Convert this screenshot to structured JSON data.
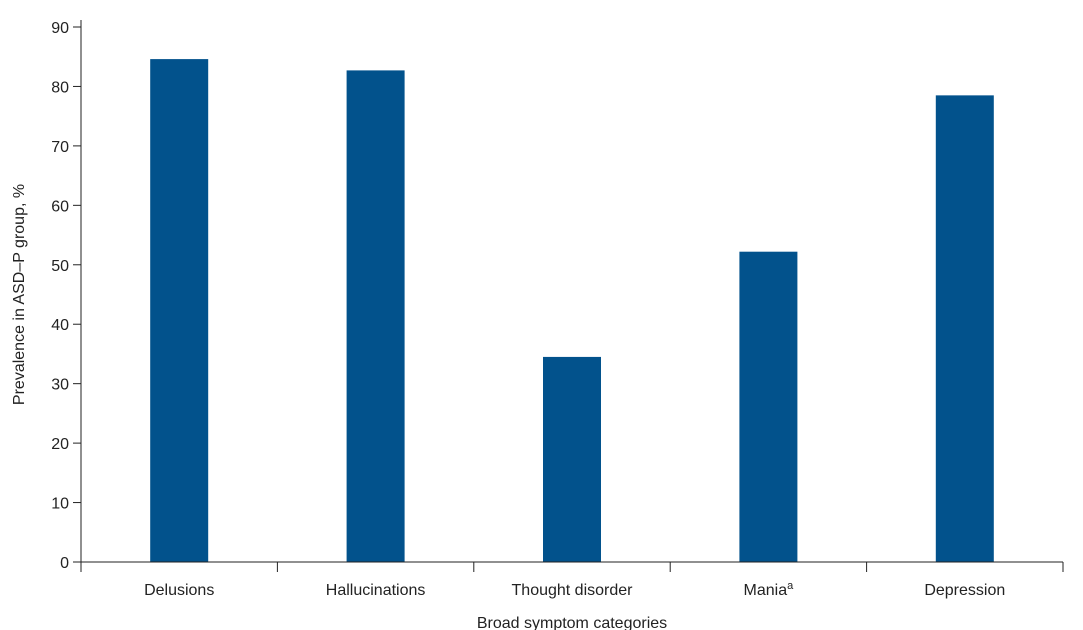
{
  "chart_data": {
    "type": "bar",
    "categories": [
      "Delusions",
      "Hallucinations",
      "Thought disorder",
      "Mania",
      "Depression"
    ],
    "category_superscripts": [
      "",
      "",
      "",
      "a",
      ""
    ],
    "values": [
      84.6,
      82.7,
      34.5,
      52.2,
      78.5
    ],
    "xlabel": "Broad symptom categories",
    "ylabel": "Prevalence in ASD–P group, %",
    "ylim": [
      0,
      90
    ],
    "yticks": [
      0,
      10,
      20,
      30,
      40,
      50,
      60,
      70,
      80,
      90
    ],
    "grid": false,
    "legend": "none",
    "bar_color": "#02528C"
  }
}
